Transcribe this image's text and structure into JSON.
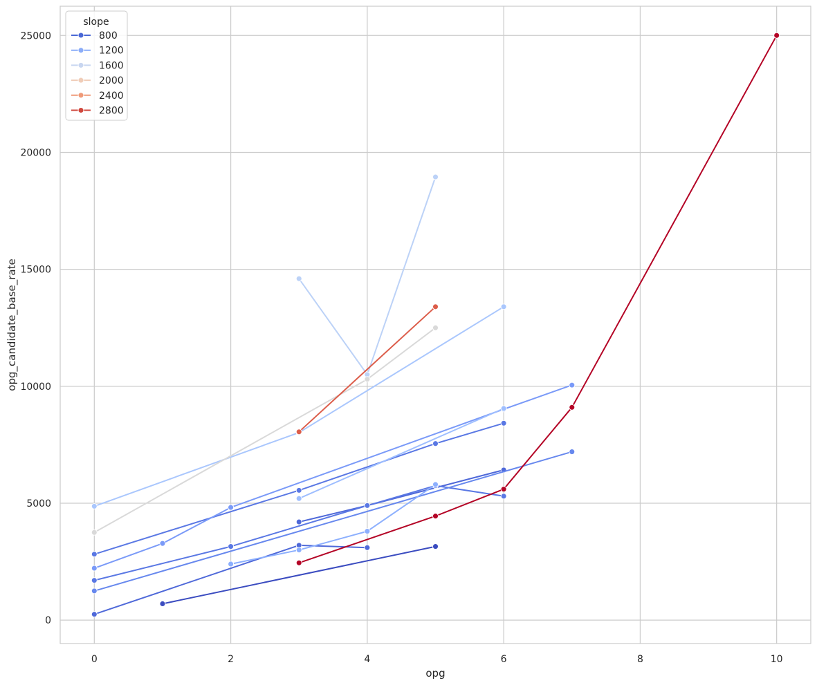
{
  "chart_data": {
    "type": "line",
    "xlabel": "opg",
    "ylabel": "opg_candidate_base_rate",
    "xlim": [
      -0.5,
      10.5
    ],
    "ylim": [
      -1000,
      26250
    ],
    "xticks": [
      0,
      2,
      4,
      6,
      8,
      10
    ],
    "yticks": [
      0,
      5000,
      10000,
      15000,
      20000,
      25000
    ],
    "grid": true,
    "legend": {
      "title": "slope",
      "placement": "top-left",
      "entries": [
        {
          "label": "800",
          "color": "#4a68d6"
        },
        {
          "label": "1200",
          "color": "#8cadf8"
        },
        {
          "label": "1600",
          "color": "#c8d6f0"
        },
        {
          "label": "2000",
          "color": "#f0cdb8"
        },
        {
          "label": "2400",
          "color": "#ef9a79"
        },
        {
          "label": "2800",
          "color": "#d0473d"
        }
      ]
    },
    "series": [
      {
        "color": "#3b4cc0",
        "points": [
          [
            1,
            700
          ],
          [
            5,
            3150
          ]
        ]
      },
      {
        "color": "#4f69d9",
        "points": [
          [
            0,
            250
          ],
          [
            3,
            3200
          ],
          [
            4,
            3100
          ]
        ]
      },
      {
        "color": "#4f69d9",
        "points": [
          [
            3,
            4200
          ],
          [
            4,
            4900
          ],
          [
            6,
            6420
          ]
        ]
      },
      {
        "color": "#5a78e4",
        "points": [
          [
            0,
            1700
          ],
          [
            2,
            3150
          ],
          [
            4,
            4900
          ],
          [
            5,
            5750
          ],
          [
            6,
            5300
          ]
        ]
      },
      {
        "color": "#5a78e4",
        "points": [
          [
            0,
            2820
          ],
          [
            3,
            5550
          ],
          [
            5,
            7550
          ],
          [
            6,
            8420
          ]
        ]
      },
      {
        "color": "#6788ee",
        "points": [
          [
            0,
            1250
          ],
          [
            7,
            7200
          ]
        ]
      },
      {
        "color": "#7a9af8",
        "points": [
          [
            0,
            2220
          ],
          [
            1,
            3280
          ],
          [
            2,
            4820
          ],
          [
            6,
            9020
          ],
          [
            7,
            10050
          ]
        ]
      },
      {
        "color": "#8caffe",
        "points": [
          [
            2,
            2400
          ],
          [
            3,
            3000
          ],
          [
            4,
            3800
          ],
          [
            5,
            5800
          ]
        ]
      },
      {
        "color": "#9ebeff",
        "points": [
          [
            3,
            5200
          ],
          [
            6,
            9050
          ]
        ]
      },
      {
        "color": "#aac7fd",
        "points": [
          [
            0,
            4870
          ],
          [
            3,
            8020
          ],
          [
            6,
            13400
          ]
        ]
      },
      {
        "color": "#bcd2f7",
        "points": [
          [
            3,
            14600
          ],
          [
            4,
            10500
          ],
          [
            5,
            18950
          ]
        ]
      },
      {
        "color": "#d9d9d9",
        "points": [
          [
            0,
            3750
          ],
          [
            4,
            10300
          ],
          [
            5,
            12500
          ]
        ]
      },
      {
        "color": "#dc5d4a",
        "points": [
          [
            3,
            8050
          ],
          [
            5,
            13400
          ]
        ]
      },
      {
        "color": "#b40426",
        "points": [
          [
            3,
            2450
          ],
          [
            5,
            4450
          ],
          [
            6,
            5600
          ],
          [
            7,
            9100
          ],
          [
            10,
            25000
          ]
        ]
      }
    ]
  }
}
